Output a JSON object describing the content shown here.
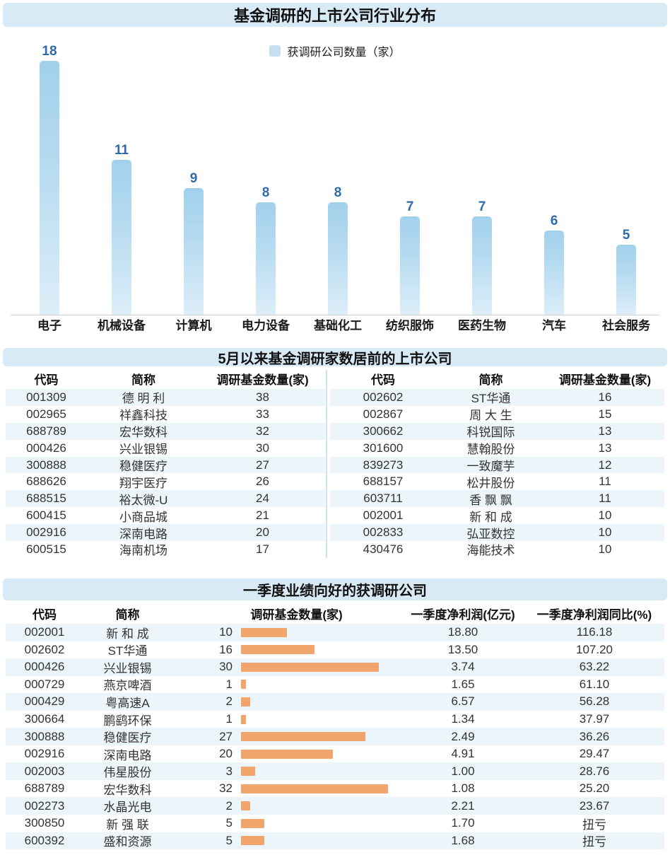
{
  "colors": {
    "band_bg": "#d9eaf7",
    "bar_top": "#a2d0eb",
    "bar_bottom": "#ddeef9",
    "value_label": "#2e6ba8",
    "row_stripe": "#ecf5fa",
    "orange_bar": "#f1a46c",
    "axis_line": "#cfcfcf",
    "legend_swatch": "#c6e0f2"
  },
  "chart_data": [
    {
      "type": "bar",
      "title": "基金调研的上市公司行业分布",
      "legend": "获调研公司数量（家）",
      "categories": [
        "电子",
        "机械设备",
        "计算机",
        "电力设备",
        "基础化工",
        "纺织服饰",
        "医药生物",
        "汽车",
        "社会服务"
      ],
      "values": [
        18,
        11,
        9,
        8,
        8,
        7,
        7,
        6,
        5
      ],
      "items": [
        {
          "label": "电子",
          "value": 18
        },
        {
          "label": "机械设备",
          "value": 11
        },
        {
          "label": "计算机",
          "value": 9
        },
        {
          "label": "电力设备",
          "value": 8
        },
        {
          "label": "基础化工",
          "value": 8
        },
        {
          "label": "纺织服饰",
          "value": 7
        },
        {
          "label": "医药生物",
          "value": 7
        },
        {
          "label": "汽车",
          "value": 6
        },
        {
          "label": "社会服务",
          "value": 5
        }
      ],
      "xlabel": "",
      "ylabel": "",
      "ylim": [
        0,
        18
      ],
      "grid": false,
      "legend_position": "top-center"
    },
    {
      "type": "table",
      "title": "5月以来基金调研家数居前的上市公司",
      "columns": [
        "代码",
        "简称",
        "调研基金数量(家)"
      ],
      "left_rows": [
        {
          "code": "001309",
          "name": "德 明 利",
          "count": "38"
        },
        {
          "code": "002965",
          "name": "祥鑫科技",
          "count": "33"
        },
        {
          "code": "688789",
          "name": "宏华数科",
          "count": "32"
        },
        {
          "code": "000426",
          "name": "兴业银锡",
          "count": "30"
        },
        {
          "code": "300888",
          "name": "稳健医疗",
          "count": "27"
        },
        {
          "code": "688626",
          "name": "翔宇医疗",
          "count": "26"
        },
        {
          "code": "688515",
          "name": "裕太微-U",
          "count": "24"
        },
        {
          "code": "600415",
          "name": "小商品城",
          "count": "21"
        },
        {
          "code": "002916",
          "name": "深南电路",
          "count": "20"
        },
        {
          "code": "600515",
          "name": "海南机场",
          "count": "17"
        }
      ],
      "right_rows": [
        {
          "code": "002602",
          "name": "ST华通",
          "count": "16"
        },
        {
          "code": "002867",
          "name": "周 大 生",
          "count": "15"
        },
        {
          "code": "300662",
          "name": "科锐国际",
          "count": "13"
        },
        {
          "code": "301600",
          "name": "慧翰股份",
          "count": "13"
        },
        {
          "code": "839273",
          "name": "一致魔芋",
          "count": "12"
        },
        {
          "code": "688157",
          "name": "松井股份",
          "count": "11"
        },
        {
          "code": "603711",
          "name": "香 飘 飘",
          "count": "11"
        },
        {
          "code": "002001",
          "name": "新 和 成",
          "count": "10"
        },
        {
          "code": "002833",
          "name": "弘亚数控",
          "count": "10"
        },
        {
          "code": "430476",
          "name": "海能技术",
          "count": "10"
        }
      ]
    },
    {
      "type": "table",
      "title": "一季度业绩向好的获调研公司",
      "columns": [
        "代码",
        "简称",
        "调研基金数量(家)",
        "一季度净利润(亿元)",
        "一季度净利润同比(%)"
      ],
      "bar_color": "#f1a46c",
      "rows": [
        {
          "code": "002001",
          "name": "新 和 成",
          "count": 10,
          "profit": "18.80",
          "yoy": "116.18"
        },
        {
          "code": "002602",
          "name": "ST华通",
          "count": 16,
          "profit": "13.50",
          "yoy": "107.20"
        },
        {
          "code": "000426",
          "name": "兴业银锡",
          "count": 30,
          "profit": "3.74",
          "yoy": "63.22"
        },
        {
          "code": "000729",
          "name": "燕京啤酒",
          "count": 1,
          "profit": "1.65",
          "yoy": "61.10"
        },
        {
          "code": "000429",
          "name": "粤高速A",
          "count": 2,
          "profit": "6.57",
          "yoy": "56.28"
        },
        {
          "code": "300664",
          "name": "鹏鹞环保",
          "count": 1,
          "profit": "1.34",
          "yoy": "37.97"
        },
        {
          "code": "300888",
          "name": "稳健医疗",
          "count": 27,
          "profit": "2.49",
          "yoy": "36.26"
        },
        {
          "code": "002916",
          "name": "深南电路",
          "count": 20,
          "profit": "4.91",
          "yoy": "29.47"
        },
        {
          "code": "002003",
          "name": "伟星股份",
          "count": 3,
          "profit": "1.00",
          "yoy": "28.76"
        },
        {
          "code": "688789",
          "name": "宏华数科",
          "count": 32,
          "profit": "1.08",
          "yoy": "25.20"
        },
        {
          "code": "002273",
          "name": "水晶光电",
          "count": 2,
          "profit": "2.21",
          "yoy": "23.67"
        },
        {
          "code": "300850",
          "name": "新 强 联",
          "count": 5,
          "profit": "1.70",
          "yoy": "扭亏"
        },
        {
          "code": "600392",
          "name": "盛和资源",
          "count": 5,
          "profit": "1.68",
          "yoy": "扭亏"
        }
      ]
    }
  ]
}
